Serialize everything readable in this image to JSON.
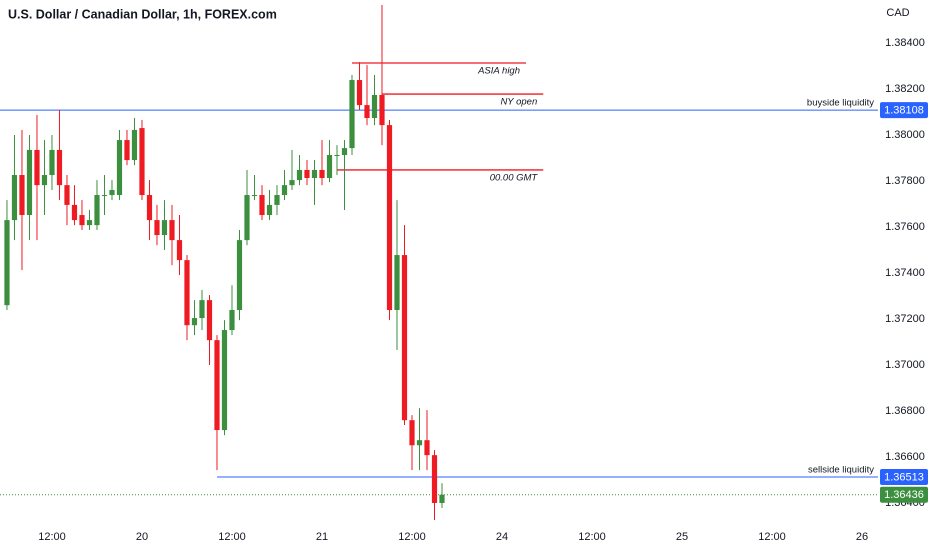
{
  "chart_data": {
    "type": "candlestick",
    "title": "U.S. Dollar / Canadian Dollar, 1h, FOREX.com",
    "y_label": "CAD",
    "up_color": "#3b8f3e",
    "down_color": "#ef1b22",
    "xlim": [
      -6.93,
      110.13
    ],
    "xticks": [
      {
        "value": 0,
        "label": "12:00"
      },
      {
        "value": 12,
        "label": "20"
      },
      {
        "value": 24,
        "label": "12:00"
      },
      {
        "value": 36,
        "label": "21"
      },
      {
        "value": 48,
        "label": "12:00"
      },
      {
        "value": 60,
        "label": "24"
      },
      {
        "value": 72,
        "label": "12:00"
      },
      {
        "value": 84,
        "label": "25"
      },
      {
        "value": 96,
        "label": "12:00"
      },
      {
        "value": 108,
        "label": "26"
      }
    ],
    "ylim": [
      1.36326,
      1.38587
    ],
    "yticks": [
      {
        "value": 1.364,
        "label": "1.36400"
      },
      {
        "value": 1.366,
        "label": "1.36600"
      },
      {
        "value": 1.368,
        "label": "1.36800"
      },
      {
        "value": 1.37,
        "label": "1.37000"
      },
      {
        "value": 1.372,
        "label": "1.37200"
      },
      {
        "value": 1.374,
        "label": "1.37400"
      },
      {
        "value": 1.376,
        "label": "1.37600"
      },
      {
        "value": 1.378,
        "label": "1.37800"
      },
      {
        "value": 1.38,
        "label": "1.38000"
      },
      {
        "value": 1.382,
        "label": "1.38200"
      },
      {
        "value": 1.384,
        "label": "1.38400"
      }
    ],
    "grid": false,
    "x": [
      -6,
      -5,
      -4,
      -3,
      -2,
      -1,
      0,
      1,
      2,
      3,
      4,
      5,
      6,
      7,
      8,
      9,
      10,
      11,
      12,
      13,
      14,
      15,
      16,
      17,
      18,
      19,
      20,
      21,
      22,
      23,
      24,
      25,
      26,
      27,
      28,
      29,
      30,
      31,
      32,
      33,
      34,
      35,
      36,
      37,
      38,
      39,
      40,
      41,
      42,
      43,
      44,
      45,
      46,
      47,
      48,
      49,
      50,
      51,
      52
    ],
    "open": [
      1.3726,
      1.3763,
      1.37826,
      1.37652,
      1.37935,
      1.37782,
      1.37826,
      1.37935,
      1.37782,
      1.37696,
      1.37652,
      1.37608,
      1.37608,
      1.37739,
      1.37739,
      1.37739,
      1.37978,
      1.37891,
      1.3803,
      1.37739,
      1.3763,
      1.37565,
      1.3763,
      1.37543,
      1.37456,
      1.37173,
      1.37204,
      1.37282,
      1.37108,
      1.36717,
      1.37152,
      1.37239,
      1.37543,
      1.37739,
      1.37739,
      1.37652,
      1.37696,
      1.37739,
      1.37782,
      1.37804,
      1.37848,
      1.37813,
      1.37848,
      1.37813,
      1.37913,
      1.37913,
      1.37943,
      1.38239,
      1.3813,
      1.38074,
      1.38174,
      1.38043,
      1.37239,
      1.37478,
      1.3676,
      1.36651,
      1.36673,
      1.36608,
      1.364
    ],
    "high": [
      1.37717,
      1.38,
      1.38022,
      1.38,
      1.38087,
      1.37978,
      1.38,
      1.38109,
      1.37826,
      1.37782,
      1.37717,
      1.37674,
      1.37804,
      1.37826,
      1.37804,
      1.38022,
      1.38022,
      1.38074,
      1.38065,
      1.37804,
      1.37696,
      1.37717,
      1.37696,
      1.37652,
      1.37478,
      1.37282,
      1.37326,
      1.37304,
      1.3713,
      1.37195,
      1.37347,
      1.37587,
      1.37848,
      1.37826,
      1.37782,
      1.37761,
      1.37782,
      1.37848,
      1.37935,
      1.37913,
      1.37891,
      1.37891,
      1.37978,
      1.37978,
      1.37956,
      1.37978,
      1.38261,
      1.38317,
      1.38304,
      1.38261,
      1.38565,
      1.38065,
      1.37717,
      1.37608,
      1.36782,
      1.36812,
      1.36804,
      1.3663,
      1.36486
    ],
    "low": [
      1.37239,
      1.37543,
      1.37413,
      1.37543,
      1.37543,
      1.37652,
      1.37761,
      1.37717,
      1.37608,
      1.37608,
      1.37587,
      1.37587,
      1.37587,
      1.37652,
      1.37717,
      1.37717,
      1.37869,
      1.37869,
      1.37717,
      1.37543,
      1.37521,
      1.375,
      1.37434,
      1.37391,
      1.37108,
      1.3713,
      1.37152,
      1.37,
      1.36543,
      1.36695,
      1.3713,
      1.37195,
      1.37521,
      1.37717,
      1.3763,
      1.3763,
      1.37652,
      1.37717,
      1.37761,
      1.37782,
      1.37782,
      1.37696,
      1.37782,
      1.37795,
      1.37826,
      1.37674,
      1.37913,
      1.38109,
      1.38043,
      1.38043,
      1.37956,
      1.37195,
      1.37065,
      1.36739,
      1.36543,
      1.36543,
      1.36543,
      1.36326,
      1.36378
    ],
    "close": [
      1.3763,
      1.37826,
      1.37652,
      1.37935,
      1.37782,
      1.37826,
      1.37935,
      1.37782,
      1.37696,
      1.3763,
      1.37608,
      1.3763,
      1.37739,
      1.37739,
      1.37761,
      1.37978,
      1.37891,
      1.38022,
      1.37739,
      1.3763,
      1.37565,
      1.3763,
      1.37543,
      1.37456,
      1.37173,
      1.37204,
      1.37282,
      1.37108,
      1.36717,
      1.37152,
      1.37239,
      1.37543,
      1.37739,
      1.37739,
      1.37652,
      1.37696,
      1.37739,
      1.37782,
      1.37804,
      1.37848,
      1.37813,
      1.37848,
      1.37813,
      1.37913,
      1.37913,
      1.37943,
      1.38239,
      1.3813,
      1.38074,
      1.38174,
      1.38043,
      1.37239,
      1.37478,
      1.3676,
      1.36651,
      1.36673,
      1.36608,
      1.364,
      1.36436
    ],
    "levels": [
      {
        "label": "ASIA high",
        "value": 1.38313,
        "x_start": 40,
        "x_end": 63.2,
        "color": "#ef1b22"
      },
      {
        "label": "NY open",
        "value": 1.38178,
        "x_start": 44,
        "x_end": 65.5,
        "color": "#ef1b22"
      },
      {
        "label": "00.00 GMT",
        "value": 1.37848,
        "x_start": 38,
        "x_end": 65.5,
        "color": "#ef1b22"
      }
    ],
    "liquidity": [
      {
        "label": "buyside liquidity",
        "value": 1.38108,
        "color": "#2962ff"
      },
      {
        "label": "sellside liquidity",
        "value": 1.36513,
        "x_start": 22,
        "color": "#2962ff"
      }
    ],
    "last_price": 1.36436
  }
}
